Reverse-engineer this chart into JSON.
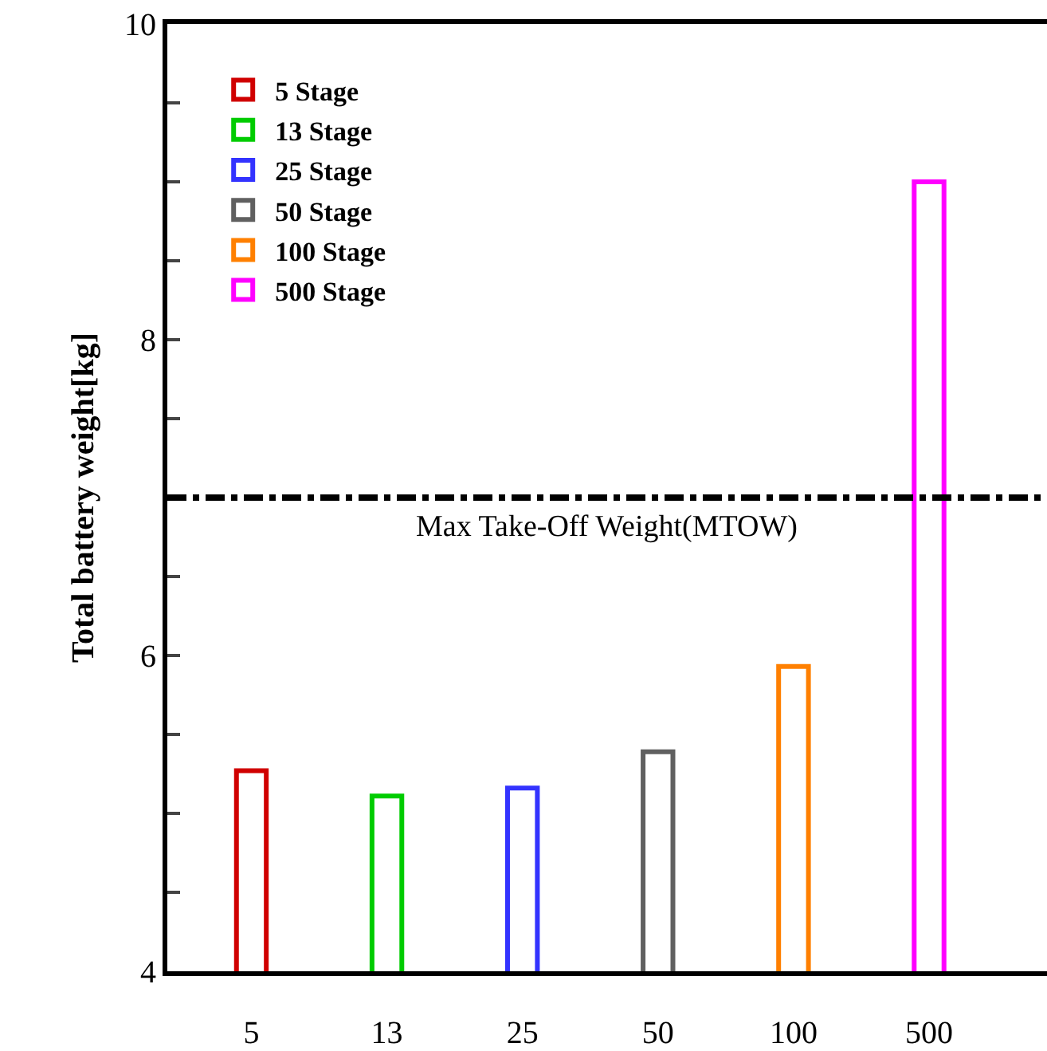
{
  "chart_data": {
    "type": "bar",
    "ylabel": "Total battery weight[kg]",
    "categories": [
      "5",
      "13",
      "25",
      "50",
      "100",
      "500"
    ],
    "series": [
      {
        "name": "5 Stage",
        "color": "#d00000",
        "values": [
          5.27,
          null,
          null,
          null,
          null,
          null
        ]
      },
      {
        "name": "13 Stage",
        "color": "#00cc00",
        "values": [
          null,
          5.11,
          null,
          null,
          null,
          null
        ]
      },
      {
        "name": "25 Stage",
        "color": "#3333ff",
        "values": [
          null,
          null,
          5.16,
          null,
          null,
          null
        ]
      },
      {
        "name": "50 Stage",
        "color": "#606060",
        "values": [
          null,
          null,
          null,
          5.39,
          null,
          null
        ]
      },
      {
        "name": "100 Stage",
        "color": "#ff8000",
        "values": [
          null,
          null,
          null,
          null,
          5.93,
          null
        ]
      },
      {
        "name": "500 Stage",
        "color": "#ff00ff",
        "values": [
          null,
          null,
          null,
          null,
          null,
          9.0
        ]
      }
    ],
    "ylim": [
      4,
      10
    ],
    "yticks": [
      4,
      {
        "value": 4.5,
        "label": null
      },
      {
        "value": 5,
        "label": null
      },
      {
        "value": 5.5,
        "label": null
      },
      6,
      {
        "value": 6.5,
        "label": null
      },
      {
        "value": 7,
        "label": null
      },
      {
        "value": 7.5,
        "label": null
      },
      8,
      {
        "value": 8.5,
        "label": null
      },
      {
        "value": 9,
        "label": null
      },
      {
        "value": 9.5,
        "label": null
      },
      10
    ],
    "ref_lines": [
      {
        "axis": "y",
        "value": 7,
        "label": "Max Take-Off Weight(MTOW)",
        "color": "#000000",
        "line_style": "dashdot"
      }
    ],
    "legend": "top left"
  }
}
